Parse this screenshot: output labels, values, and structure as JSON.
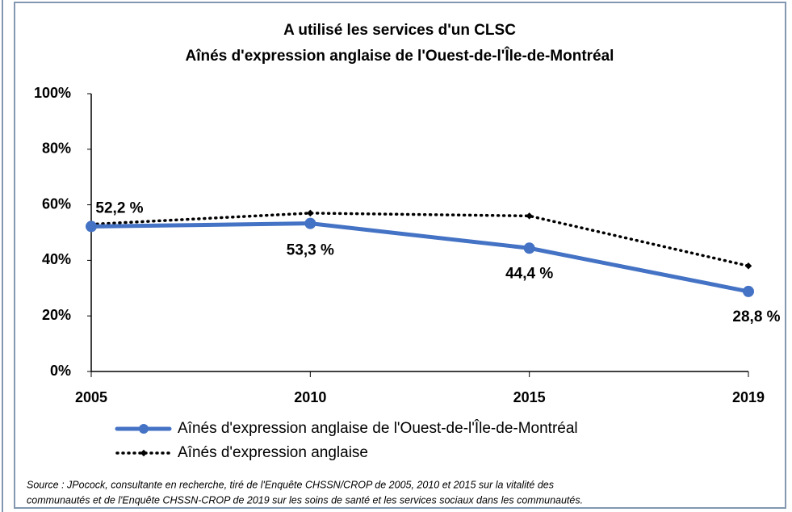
{
  "chart_data": {
    "type": "line",
    "title": "A utilisé les services d'un CLSC",
    "subtitle": "Aînés d'expression anglaise de l'Ouest-de-l'Île-de-Montréal",
    "categories": [
      "2005",
      "2010",
      "2015",
      "2019"
    ],
    "series": [
      {
        "name": "Aînés d'expression anglaise de l'Ouest-de-l'Île-de-Montréal",
        "color": "#4472c4",
        "values": [
          52.2,
          53.3,
          44.4,
          28.8
        ],
        "value_labels": [
          "52,2 %",
          "53,3 %",
          "44,4 %",
          "28,8 %"
        ]
      },
      {
        "name": "Aînés d'expression anglaise",
        "color": "#000000",
        "dash": "dotted",
        "values": [
          53,
          57,
          56,
          38
        ]
      }
    ],
    "ylim": [
      0,
      100
    ],
    "yticks": [
      {
        "value": 0,
        "label": "0%"
      },
      {
        "value": 20,
        "label": "20%"
      },
      {
        "value": 40,
        "label": "40%"
      },
      {
        "value": 60,
        "label": "60%"
      },
      {
        "value": 80,
        "label": "80%"
      },
      {
        "value": 100,
        "label": "100%"
      }
    ],
    "grid": false,
    "source": [
      "Source : JPocock, consultante en recherche, tiré de l'Enquête CHSSN/CROP de 2005, 2010 et 2015 sur la vitalité des",
      "communautés et de l'Enquête CHSSN-CROP de 2019 sur les soins de santé et les services sociaux dans les communautés."
    ]
  }
}
